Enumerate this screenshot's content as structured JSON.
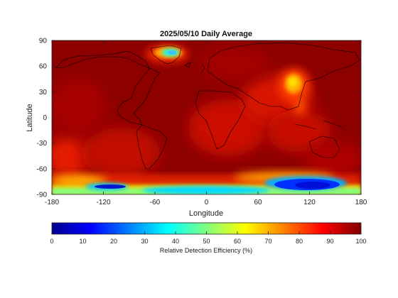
{
  "title": "2025/05/10 Daily Average",
  "map": {
    "x_label": "Longitude",
    "y_label": "Latitude",
    "x_ticks": [
      "-180",
      "-120",
      "-60",
      "0",
      "60",
      "120",
      "180"
    ],
    "y_ticks": [
      "90",
      "60",
      "30",
      "0",
      "-30",
      "-60",
      "-90"
    ],
    "x_range": [
      -180,
      180
    ],
    "y_range": [
      -90,
      90
    ],
    "background_value": 98,
    "colormap": "jet"
  },
  "colorbar": {
    "label": "Relative Detection Efficiency (%)",
    "ticks": [
      "0",
      "10",
      "20",
      "30",
      "40",
      "50",
      "60",
      "70",
      "80",
      "90",
      "100"
    ],
    "range": [
      0,
      100
    ]
  },
  "colors": {
    "jet_dark_red": "#7f0000",
    "jet_red": "#ff0000",
    "jet_yellow": "#ffff00",
    "jet_cyan": "#00ffff",
    "jet_blue": "#0000ff",
    "jet_dark_blue": "#00007f"
  }
}
